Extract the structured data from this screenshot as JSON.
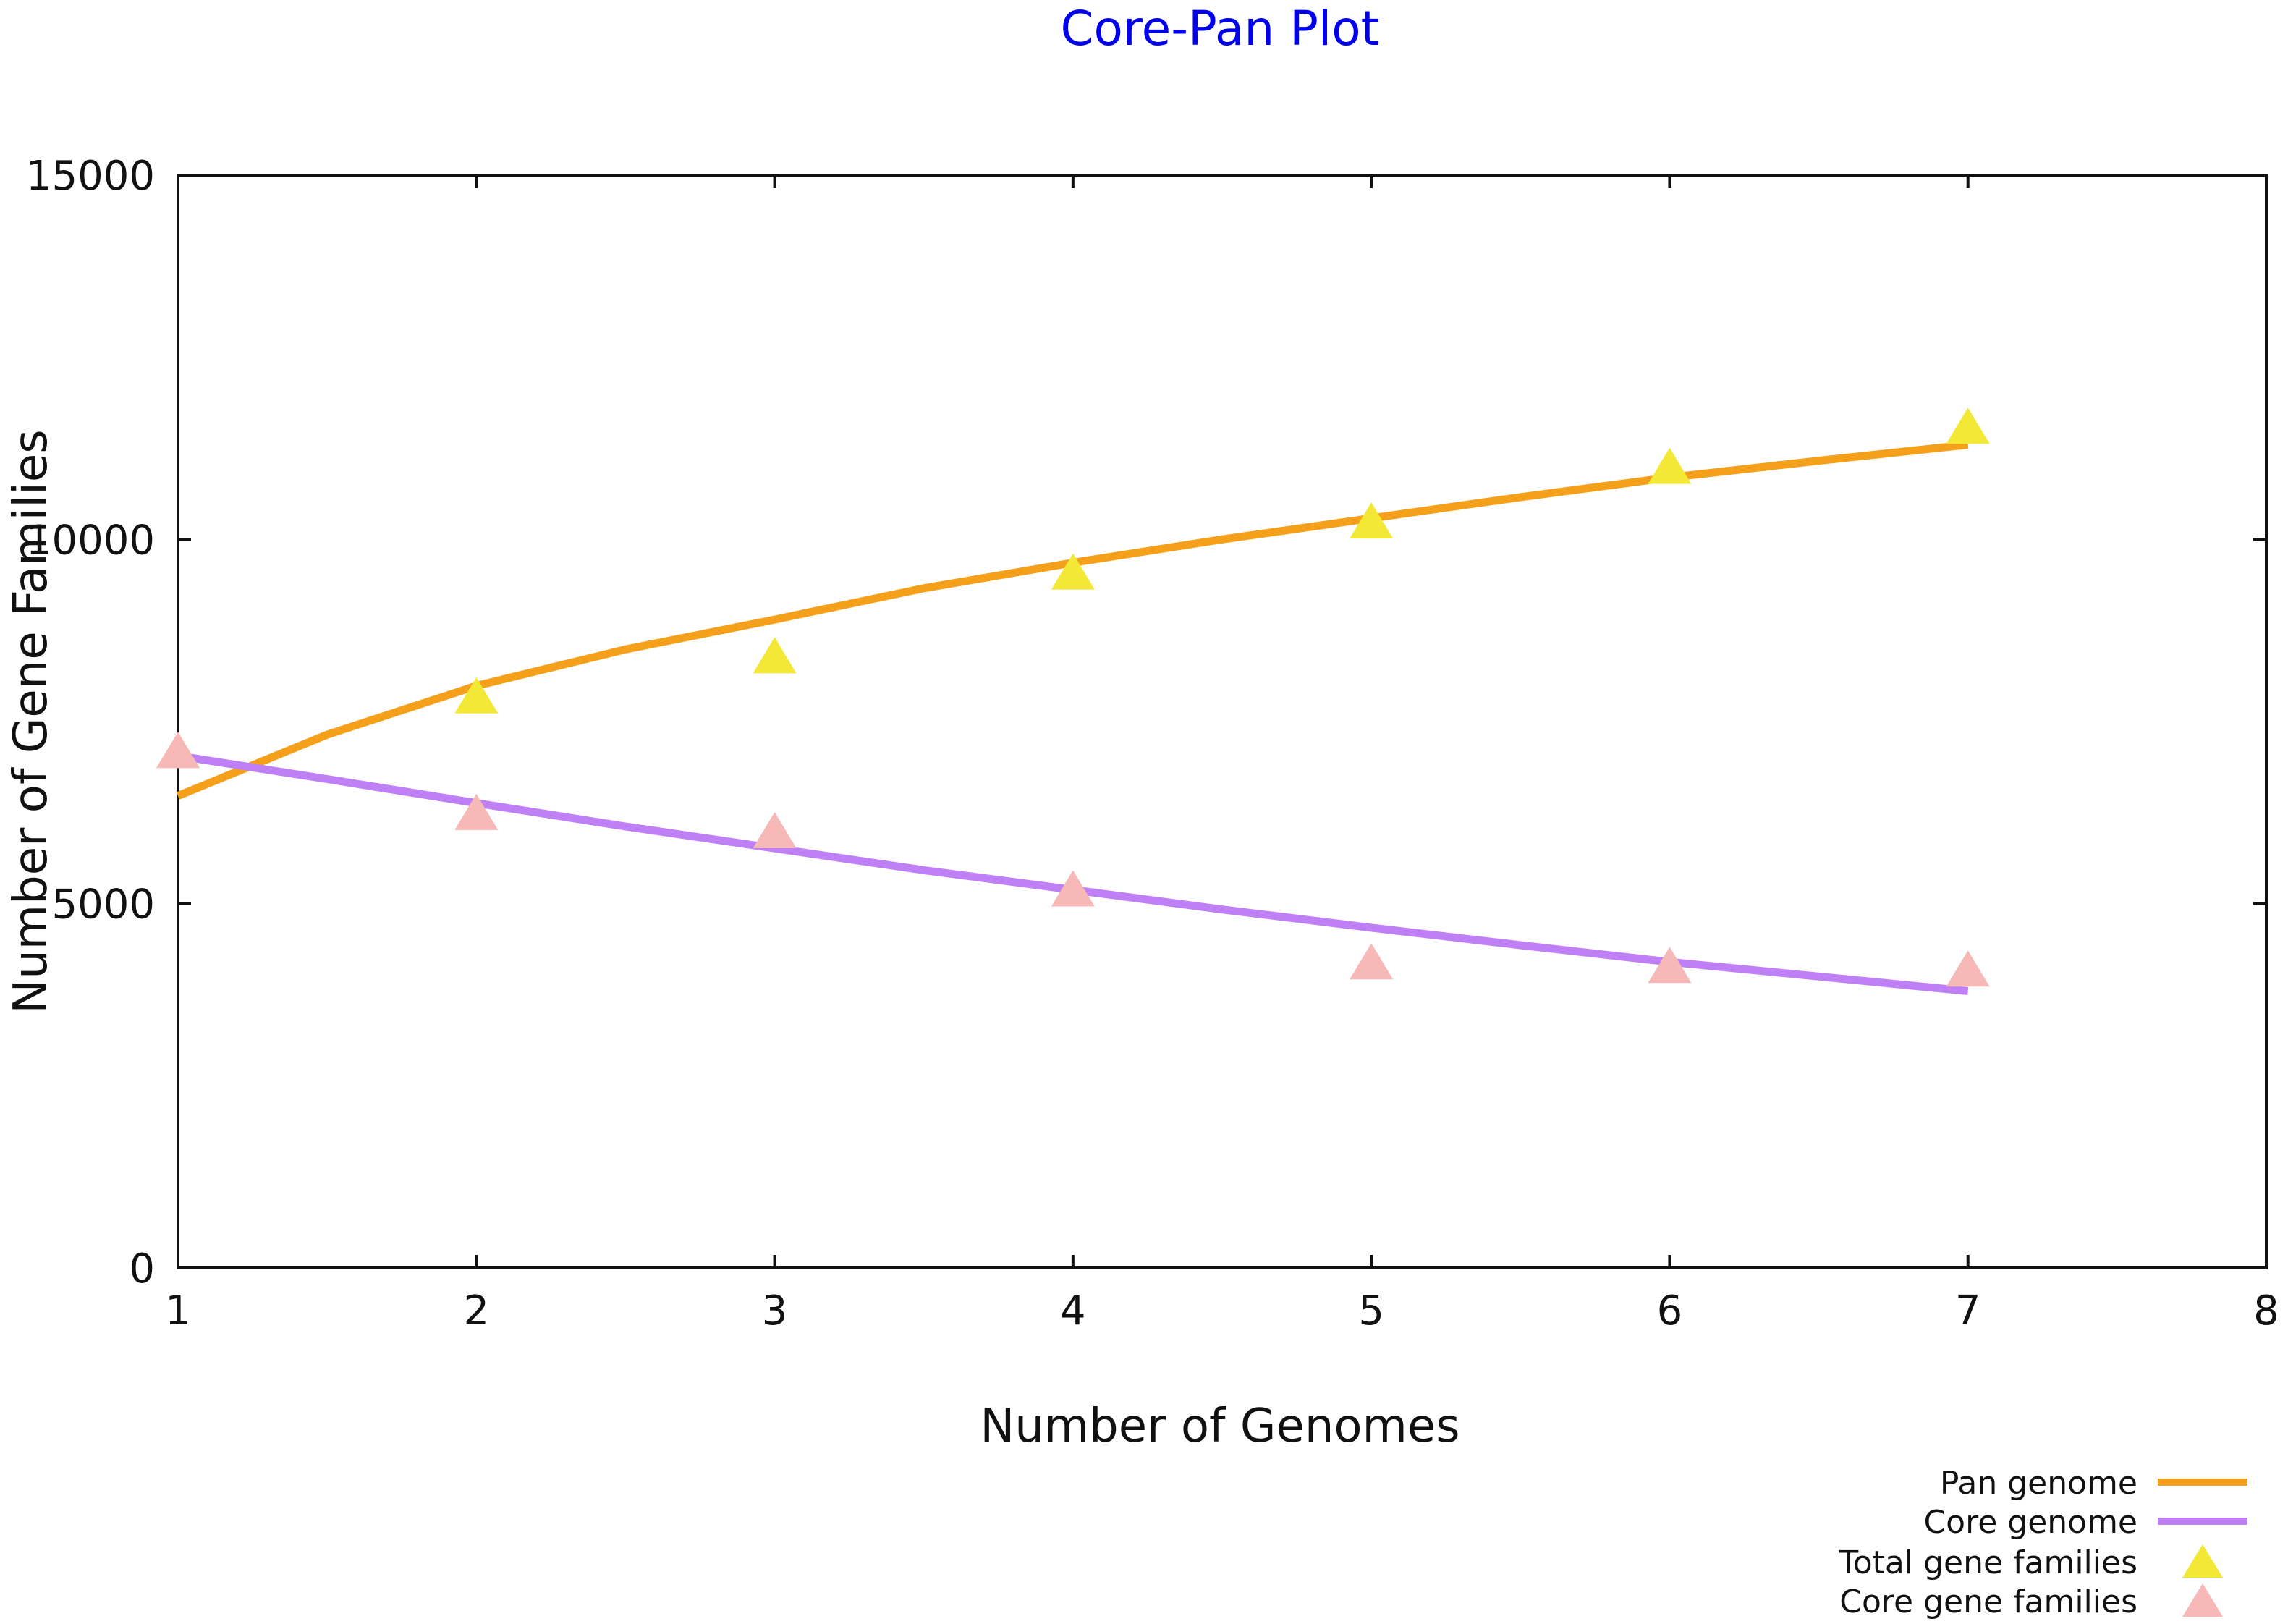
{
  "chart_data": {
    "type": "line",
    "title": "Core-Pan Plot",
    "xlabel": "Number of Genomes",
    "ylabel": "Number of Gene Families",
    "xlim": [
      1,
      8
    ],
    "ylim": [
      0,
      15000
    ],
    "xticks": [
      1,
      2,
      3,
      4,
      5,
      6,
      7,
      8
    ],
    "yticks": [
      0,
      5000,
      10000,
      15000
    ],
    "grid": false,
    "legend_position": "bottom-right",
    "colors": {
      "pan_line": "#f5a01a",
      "core_line": "#bf80f5",
      "total_marker": "#f2e835",
      "core_marker": "#f7b8b8",
      "title": "#0000ee"
    },
    "series": [
      {
        "name": "Pan genome",
        "kind": "line",
        "x": [
          1,
          1.5,
          2,
          2.5,
          3,
          3.5,
          4,
          4.5,
          5,
          5.5,
          6,
          6.5,
          7
        ],
        "values": [
          6480,
          7320,
          7990,
          8490,
          8900,
          9330,
          9680,
          10000,
          10290,
          10580,
          10850,
          11080,
          11300
        ]
      },
      {
        "name": "Core genome",
        "kind": "line",
        "x": [
          1,
          1.5,
          2,
          2.5,
          3,
          3.5,
          4,
          4.5,
          5,
          5.5,
          6,
          6.5,
          7
        ],
        "values": [
          7030,
          6710,
          6380,
          6060,
          5760,
          5460,
          5190,
          4920,
          4670,
          4430,
          4200,
          4000,
          3800
        ]
      },
      {
        "name": "Total gene families",
        "kind": "marker",
        "x": [
          1,
          2,
          3,
          4,
          5,
          6,
          7
        ],
        "values": [
          7100,
          7850,
          8400,
          9550,
          10250,
          11000,
          11550
        ]
      },
      {
        "name": "Core gene families",
        "kind": "marker",
        "x": [
          1,
          2,
          3,
          4,
          5,
          6,
          7
        ],
        "values": [
          7100,
          6250,
          6000,
          5200,
          4200,
          4150,
          4100
        ]
      }
    ]
  }
}
